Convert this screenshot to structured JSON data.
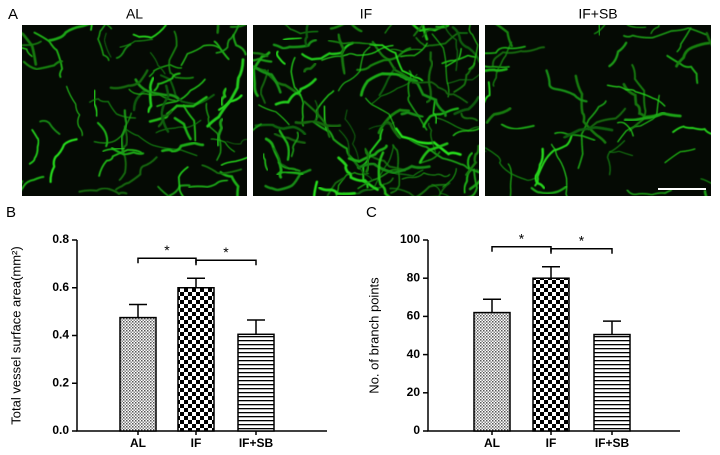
{
  "panel_labels": [
    "A",
    "B",
    "C"
  ],
  "images": [
    {
      "label": "AL"
    },
    {
      "label": "IF"
    },
    {
      "label": "IF+SB"
    }
  ],
  "chart_data": [
    {
      "type": "bar",
      "ylabel": "Total vessel surface area(mm²)",
      "categories": [
        "AL",
        "IF",
        "IF+SB"
      ],
      "values": [
        0.475,
        0.6,
        0.405
      ],
      "errors": [
        0.055,
        0.04,
        0.06
      ],
      "fills": [
        "crosshatch",
        "checker",
        "hlines"
      ],
      "ylim": [
        0,
        0.8
      ],
      "yticks": [
        {
          "value": 0,
          "label": "0.0"
        },
        0.2,
        0.4,
        0.6,
        0.8
      ],
      "annotations": [
        {
          "text": "*",
          "between": [
            0,
            1
          ]
        },
        {
          "text": "*",
          "between": [
            1,
            2
          ]
        }
      ]
    },
    {
      "type": "bar",
      "ylabel": "No. of branch points",
      "categories": [
        "AL",
        "IF",
        "IF+SB"
      ],
      "values": [
        62,
        80,
        50.5
      ],
      "errors": [
        7,
        6,
        7
      ],
      "fills": [
        "crosshatch",
        "checker",
        "hlines"
      ],
      "ylim": [
        0,
        100
      ],
      "yticks": [
        0,
        20,
        40,
        60,
        80,
        100
      ],
      "annotations": [
        {
          "text": "*",
          "between": [
            0,
            1
          ]
        },
        {
          "text": "*",
          "between": [
            1,
            2
          ]
        }
      ]
    }
  ]
}
